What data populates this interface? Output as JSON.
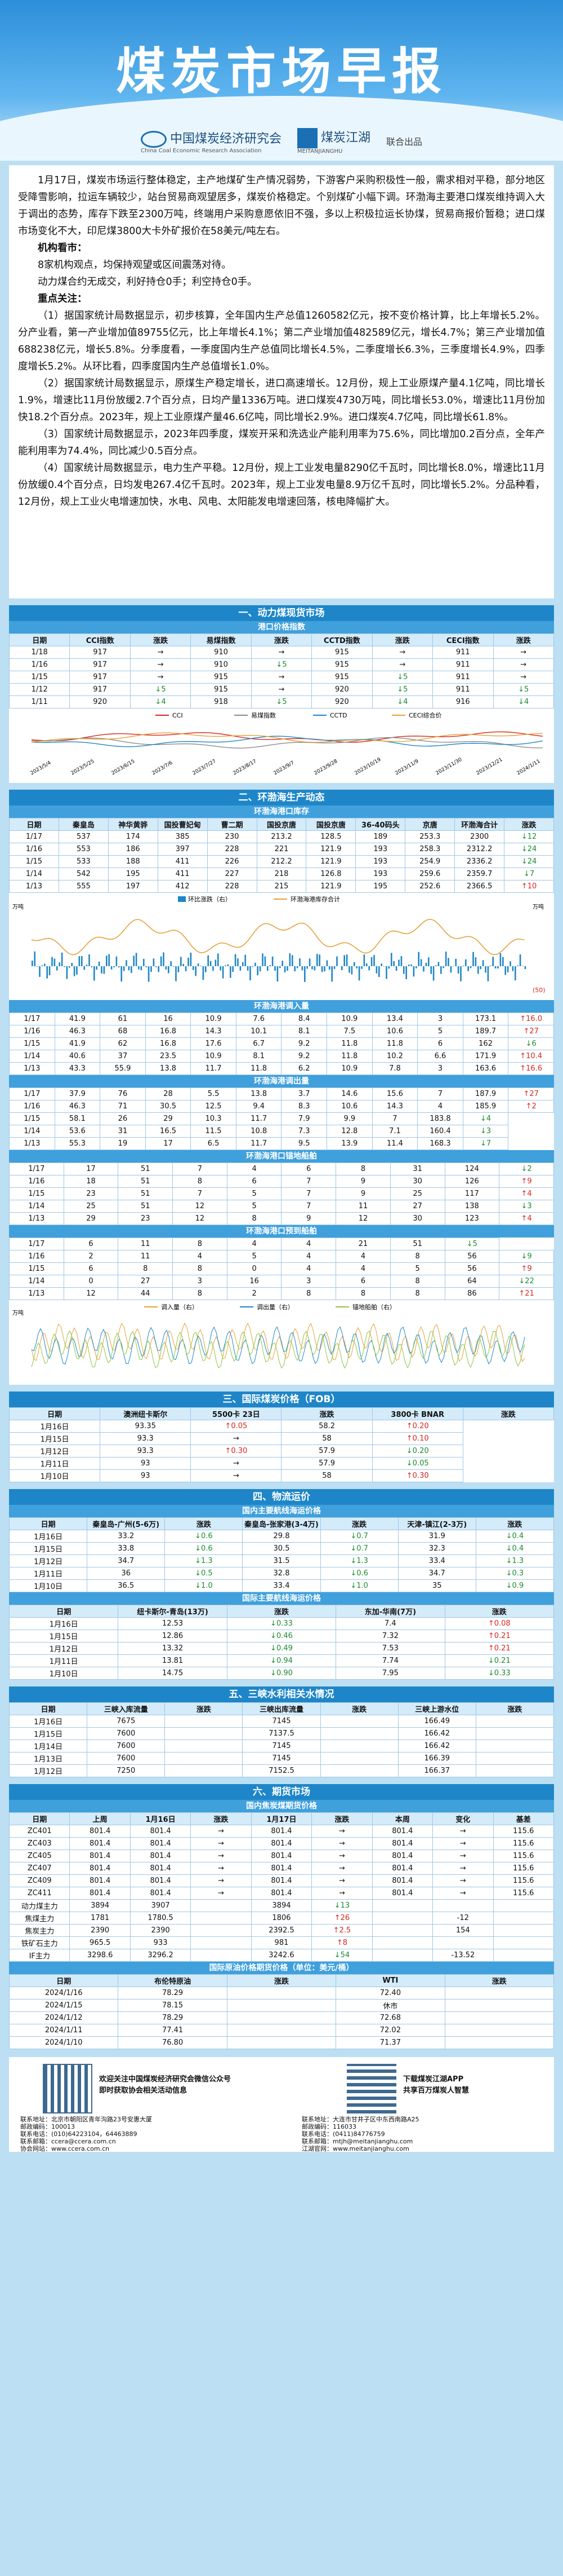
{
  "banner": {
    "title": "煤炭市场早报",
    "org1": "中国煤炭经济研究会",
    "org1_en": "China Coal Economic Research Association",
    "org2": "煤炭江湖",
    "org2_en": "MEITANJIANGHU",
    "joint": "联合出品"
  },
  "summary": [
    "1月17日，煤炭市场运行整体稳定，主产地煤矿生产情况弱势，下游客户采购积极性一般，需求相对平稳，部分地区受降雪影响，拉运车辆较少，站台贸易商观望居多，煤炭价格稳定。个别煤矿小幅下调。环渤海主要港口煤炭维持调入大于调出的态势，库存下跌至2300万吨，终端用户采购意愿依旧不强，多以上积极拉运长协煤，贸易商报价暂稳；进口煤市场变化不大，印尼煤3800大卡外矿报价在58美元/吨左右。",
    "机构看市：",
    "8家机构观点，均保持观望或区间震荡对待。",
    "动力煤合约无成交，利好持仓0手；利空持仓0手。",
    "重点关注：",
    "（1）据国家统计局数据显示，初步核算，全年国内生产总值1260582亿元，按不变价格计算，比上年增长5.2%。分产业看，第一产业增加值89755亿元，比上年增长4.1%；第二产业增加值482589亿元，增长4.7%；第三产业增加值688238亿元，增长5.8%。分季度看，一季度国内生产总值同比增长4.5%，二季度增长6.3%，三季度增长4.9%，四季度增长5.2%。从环比看，四季度国内生产总值增长1.0%。",
    "（2）据国家统计局数据显示，原煤生产稳定增长，进口高速增长。12月份，规上工业原煤产量4.1亿吨，同比增长1.9%，增速比11月份放缓2.7个百分点，日均产量1336万吨。进口煤炭4730万吨，同比增长53.0%，增速比11月份加快18.2个百分点。2023年，规上工业原煤产量46.6亿吨，同比增长2.9%。进口煤炭4.7亿吨，同比增长61.8%。",
    "（3）国家统计局数据显示，2023年四季度，煤炭开采和洗选业产能利用率为75.6%，同比增加0.2百分点，全年产能利用率为74.4%，同比减少0.5百分点。",
    "（4）国家统计局数据显示，电力生产平稳。12月份，规上工业发电量8290亿千瓦时，同比增长8.0%，增速比11月份放缓0.4个百分点，日均发电267.4亿千瓦时。2023年，规上工业发电量8.9万亿千瓦时，同比增长5.2%。分品种看，12月份，规上工业火电增速加快，水电、风电、太阳能发电增速回落，核电降幅扩大。"
  ],
  "s1": {
    "title": "一、动力煤现货市场",
    "sub": "港口价格指数",
    "head": [
      "日期",
      "CCI指数",
      "涨跌",
      "易煤指数",
      "涨跌",
      "CCTD指数",
      "涨跌",
      "CECI指数",
      "涨跌"
    ],
    "rows": [
      [
        "1/18",
        "917",
        "→",
        "910",
        "→",
        "915",
        "→",
        "911",
        "→"
      ],
      [
        "1/16",
        "917",
        "→",
        "910",
        "↓5",
        "915",
        "→",
        "911",
        "→"
      ],
      [
        "1/15",
        "917",
        "→",
        "915",
        "→",
        "915",
        "↓5",
        "911",
        "→"
      ],
      [
        "1/12",
        "917",
        "↓5",
        "915",
        "→",
        "920",
        "↓5",
        "911",
        "↓5"
      ],
      [
        "1/11",
        "920",
        "↓4",
        "918",
        "↓5",
        "920",
        "↓4",
        "916",
        "↓4"
      ]
    ],
    "legend": [
      "CCI",
      "易煤指数",
      "CCTD",
      "CECI综合价"
    ],
    "chart_dates": [
      "2023/5/4",
      "2023/5/25",
      "2023/6/15",
      "2023/7/6",
      "2023/7/27",
      "2023/8/17",
      "2023/9/7",
      "2023/9/28",
      "2023/10/19",
      "2023/11/9",
      "2023/11/30",
      "2023/12/21",
      "2024/1/11"
    ]
  },
  "s2": {
    "title": "二、环渤海生产动态",
    "t1": {
      "sub": "环渤海港口库存",
      "head": [
        "日期",
        "秦皇岛",
        "神华黄骅",
        "国投曹妃甸",
        "曹二期",
        "国投京唐",
        "国投京唐",
        "36-40码头",
        "京唐",
        "环渤海合计",
        "涨跌"
      ],
      "rows": [
        [
          "1/17",
          "537",
          "174",
          "385",
          "230",
          "213.2",
          "128.5",
          "189",
          "253.3",
          "2300",
          "↓12"
        ],
        [
          "1/16",
          "553",
          "186",
          "397",
          "228",
          "221",
          "121.9",
          "193",
          "258.3",
          "2312.2",
          "↓24"
        ],
        [
          "1/15",
          "533",
          "188",
          "411",
          "226",
          "212.2",
          "121.9",
          "193",
          "254.9",
          "2336.2",
          "↓24"
        ],
        [
          "1/14",
          "542",
          "195",
          "411",
          "227",
          "218",
          "126.8",
          "193",
          "259.6",
          "2359.7",
          "↓7"
        ],
        [
          "1/13",
          "555",
          "197",
          "412",
          "228",
          "215",
          "121.9",
          "195",
          "252.6",
          "2366.5",
          "↑10"
        ]
      ],
      "legend": [
        "环比涨跌（右）",
        "环渤海港库存合计"
      ],
      "ylabel_l": "万吨",
      "ylabel_r": "万吨",
      "badge": "(50)"
    },
    "t2": {
      "sub": "环渤海港调入量",
      "head": [
        "日期",
        "秦皇岛",
        "神华黄骅",
        "国投曹妃甸",
        "曹二期",
        "国投京唐",
        "国投京唐",
        "36-40码头",
        "京唐",
        "环渤海合计",
        "涨跌"
      ],
      "rows": [
        [
          "1/17",
          "41.9",
          "61",
          "16",
          "10.9",
          "7.6",
          "8.4",
          "10.9",
          "13.4",
          "3",
          "173.1",
          "↑16.0"
        ],
        [
          "1/16",
          "46.3",
          "68",
          "16.8",
          "14.3",
          "10.1",
          "8.1",
          "7.5",
          "10.6",
          "5",
          "189.7",
          "↑27"
        ],
        [
          "1/15",
          "41.9",
          "62",
          "16.8",
          "17.6",
          "6.7",
          "9.2",
          "11.8",
          "11.8",
          "6",
          "162",
          "↓6"
        ],
        [
          "1/14",
          "40.6",
          "37",
          "23.5",
          "10.9",
          "8.1",
          "9.2",
          "11.8",
          "10.2",
          "6.6",
          "171.9",
          "↑10.4"
        ],
        [
          "1/13",
          "43.3",
          "55.9",
          "13.8",
          "11.7",
          "11.8",
          "6.2",
          "10.9",
          "7.8",
          "3",
          "163.6",
          "↑16.6"
        ]
      ]
    },
    "t3": {
      "sub": "环渤海港调出量",
      "rows": [
        [
          "1/17",
          "37.9",
          "76",
          "28",
          "5.5",
          "13.8",
          "3.7",
          "14.6",
          "15.6",
          "7",
          "187.9",
          "↑27"
        ],
        [
          "1/16",
          "46.3",
          "71",
          "30.5",
          "12.5",
          "9.4",
          "8.3",
          "10.6",
          "14.3",
          "4",
          "185.9",
          "↑2"
        ],
        [
          "1/15",
          "58.1",
          "26",
          "29",
          "10.3",
          "11.7",
          "7.9",
          "9.9",
          "7",
          "183.8",
          "↓4"
        ],
        [
          "1/14",
          "53.6",
          "31",
          "16.5",
          "11.5",
          "10.8",
          "7.3",
          "12.8",
          "7.1",
          "160.4",
          "↓3"
        ],
        [
          "1/13",
          "55.3",
          "19",
          "17",
          "6.5",
          "11.7",
          "9.5",
          "13.9",
          "11.4",
          "168.3",
          "↓7"
        ]
      ]
    },
    "t4": {
      "sub": "环渤海港口锚地船舶",
      "rows": [
        [
          "1/17",
          "17",
          "51",
          "7",
          "4",
          "6",
          "8",
          "31",
          "124",
          "↓2"
        ],
        [
          "1/16",
          "18",
          "51",
          "8",
          "6",
          "7",
          "9",
          "30",
          "126",
          "↑9"
        ],
        [
          "1/15",
          "23",
          "51",
          "7",
          "5",
          "7",
          "9",
          "25",
          "117",
          "↑4"
        ],
        [
          "1/14",
          "25",
          "51",
          "12",
          "5",
          "7",
          "11",
          "27",
          "138",
          "↓3"
        ],
        [
          "1/13",
          "29",
          "23",
          "12",
          "8",
          "9",
          "12",
          "30",
          "123",
          "↑4"
        ]
      ]
    },
    "t5": {
      "sub": "环渤海港口预到船舶",
      "rows": [
        [
          "1/17",
          "6",
          "11",
          "8",
          "4",
          "4",
          "21",
          "51",
          "↓5"
        ],
        [
          "1/16",
          "2",
          "11",
          "4",
          "5",
          "4",
          "4",
          "8",
          "56",
          "↓9"
        ],
        [
          "1/15",
          "6",
          "8",
          "8",
          "0",
          "4",
          "4",
          "5",
          "56",
          "↑9"
        ],
        [
          "1/14",
          "0",
          "27",
          "3",
          "16",
          "3",
          "6",
          "8",
          "64",
          "↓22"
        ],
        [
          "1/13",
          "12",
          "44",
          "8",
          "2",
          "8",
          "8",
          "8",
          "86",
          "↑21"
        ]
      ]
    },
    "legend2": [
      "调入量（右）",
      "调出量（右）",
      "锚地船舶（右）"
    ],
    "ylabel2": "万吨"
  },
  "s3": {
    "title": "三、国际煤炭价格（FOB）",
    "head": [
      "日期",
      "澳洲纽卡斯尔",
      "5500卡 23日",
      "涨跌",
      "3800卡 BNAR",
      "涨跌"
    ],
    "rows": [
      [
        "1月16日",
        "93.35",
        "↑0.05",
        "58.2",
        "↑0.20"
      ],
      [
        "1月15日",
        "93.3",
        "→",
        "58",
        "↑0.10"
      ],
      [
        "1月12日",
        "93.3",
        "↑0.30",
        "57.9",
        "↓0.20"
      ],
      [
        "1月11日",
        "93",
        "→",
        "57.9",
        "↓0.05"
      ],
      [
        "1月10日",
        "93",
        "→",
        "58",
        "↑0.30"
      ]
    ]
  },
  "s4": {
    "title": "四、物流运价",
    "sub1": "国内主要航线海运价格",
    "head1": [
      "日期",
      "秦皇岛-广州(5-6万)",
      "涨跌",
      "秦皇岛-张家港(3-4万)",
      "涨跌",
      "天津-镇江(2-3万)",
      "涨跌"
    ],
    "rows1": [
      [
        "1月16日",
        "33.2",
        "↓0.6",
        "29.8",
        "↓0.7",
        "31.9",
        "↓0.4"
      ],
      [
        "1月15日",
        "33.8",
        "↓0.6",
        "30.5",
        "↓0.7",
        "32.3",
        "↓0.4"
      ],
      [
        "1月12日",
        "34.7",
        "↓1.3",
        "31.5",
        "↓1.3",
        "33.4",
        "↓1.3"
      ],
      [
        "1月11日",
        "36",
        "↓0.5",
        "32.8",
        "↓0.6",
        "34.7",
        "↓0.3"
      ],
      [
        "1月10日",
        "36.5",
        "↓1.0",
        "33.4",
        "↓1.0",
        "35",
        "↓0.9"
      ]
    ],
    "sub2": "国际主要航线海运价格",
    "head2": [
      "日期",
      "纽卡斯尔-青岛(13万)",
      "涨跌",
      "东加-华南(7万)",
      "涨跌"
    ],
    "rows2": [
      [
        "1月16日",
        "12.53",
        "↓0.33",
        "7.4",
        "↑0.08"
      ],
      [
        "1月15日",
        "12.86",
        "↓0.46",
        "7.32",
        "↑0.21"
      ],
      [
        "1月12日",
        "13.32",
        "↓0.49",
        "7.53",
        "↑0.21"
      ],
      [
        "1月11日",
        "13.81",
        "↓0.94",
        "7.74",
        "↓0.21"
      ],
      [
        "1月10日",
        "14.75",
        "↓0.90",
        "7.95",
        "↓0.33"
      ]
    ]
  },
  "s5": {
    "title": "五、三峡水利相关水情况",
    "head": [
      "日期",
      "三峡入库流量",
      "涨跌",
      "三峡出库流量",
      "涨跌",
      "三峡上游水位",
      "涨跌"
    ],
    "rows": [
      [
        "1月16日",
        "7675",
        "",
        "7145",
        "",
        "166.49",
        ""
      ],
      [
        "1月15日",
        "7600",
        "",
        "7137.5",
        "",
        "166.42",
        ""
      ],
      [
        "1月14日",
        "7600",
        "",
        "7145",
        "",
        "166.42",
        ""
      ],
      [
        "1月13日",
        "7600",
        "",
        "7145",
        "",
        "166.39",
        ""
      ],
      [
        "1月12日",
        "7250",
        "",
        "7152.5",
        "",
        "166.37",
        ""
      ]
    ]
  },
  "s6": {
    "title": "六、期货市场",
    "sub1": "国内焦炭煤期货价格",
    "head1": [
      "日期",
      "上周",
      "1月16日",
      "涨跌",
      "1月17日",
      "涨跌",
      "本周",
      "变化",
      "基差"
    ],
    "rows1": [
      [
        "ZC401",
        "801.4",
        "801.4",
        "→",
        "801.4",
        "→",
        "801.4",
        "→",
        "115.6"
      ],
      [
        "ZC403",
        "801.4",
        "801.4",
        "→",
        "801.4",
        "→",
        "801.4",
        "→",
        "115.6"
      ],
      [
        "ZC405",
        "801.4",
        "801.4",
        "→",
        "801.4",
        "→",
        "801.4",
        "→",
        "115.6"
      ],
      [
        "ZC407",
        "801.4",
        "801.4",
        "→",
        "801.4",
        "→",
        "801.4",
        "→",
        "115.6"
      ],
      [
        "ZC409",
        "801.4",
        "801.4",
        "→",
        "801.4",
        "→",
        "801.4",
        "→",
        "115.6"
      ],
      [
        "ZC411",
        "801.4",
        "801.4",
        "→",
        "801.4",
        "→",
        "801.4",
        "→",
        "115.6"
      ],
      [
        "动力煤主力",
        "3894",
        "3907",
        "",
        "3894",
        "↓13",
        "",
        "",
        ""
      ],
      [
        "焦煤主力",
        "1781",
        "1780.5",
        "",
        "1806",
        "↑26",
        "",
        "-12",
        ""
      ],
      [
        "焦炭主力",
        "2390",
        "2390",
        "",
        "2392.5",
        "↑2.5",
        "",
        "154",
        ""
      ],
      [
        "铁矿石主力",
        "965.5",
        "933",
        "",
        "981",
        "↑8",
        "",
        "",
        ""
      ],
      [
        "IF主力",
        "3298.6",
        "3296.2",
        "",
        "3242.6",
        "↓54",
        "",
        "-13.52",
        ""
      ]
    ],
    "sub2": "国际原油价格期货价格（单位：美元/桶）",
    "head2": [
      "日期",
      "布伦特原油",
      "涨跌",
      "WTI",
      "涨跌"
    ],
    "rows2": [
      [
        "2024/1/16",
        "78.29",
        "",
        "72.40",
        ""
      ],
      [
        "2024/1/15",
        "78.15",
        "",
        "休市",
        ""
      ],
      [
        "2024/1/12",
        "78.29",
        "",
        "72.68",
        ""
      ],
      [
        "2024/1/11",
        "77.41",
        "",
        "72.02",
        ""
      ],
      [
        "2024/1/10",
        "76.80",
        "",
        "71.37",
        ""
      ]
    ]
  },
  "footer": {
    "left": [
      "欢迎关注中国煤炭经济研究会微信公众号",
      "即时获取协会相关活动信息"
    ],
    "right": [
      "下载煤炭江湖APP",
      "共享百万煤炭人智慧"
    ],
    "contact_l": [
      "联系地址：北京市朝阳区青年沟路23号安惠大厦",
      "邮政编码：100013",
      "联系电话：(010)64223104，64463889",
      "联系邮箱：ccera@ccera.com.cn",
      "协会网站：www.ccera.com.cn"
    ],
    "contact_r": [
      "联系地址：大连市甘井子区中东西南路A25",
      "邮政编码：116033",
      "联系电话：(0411)84776759",
      "联系邮箱：mtjh@meitanjianghu.com",
      "江湖官网：www.meitanjianghu.com"
    ]
  }
}
